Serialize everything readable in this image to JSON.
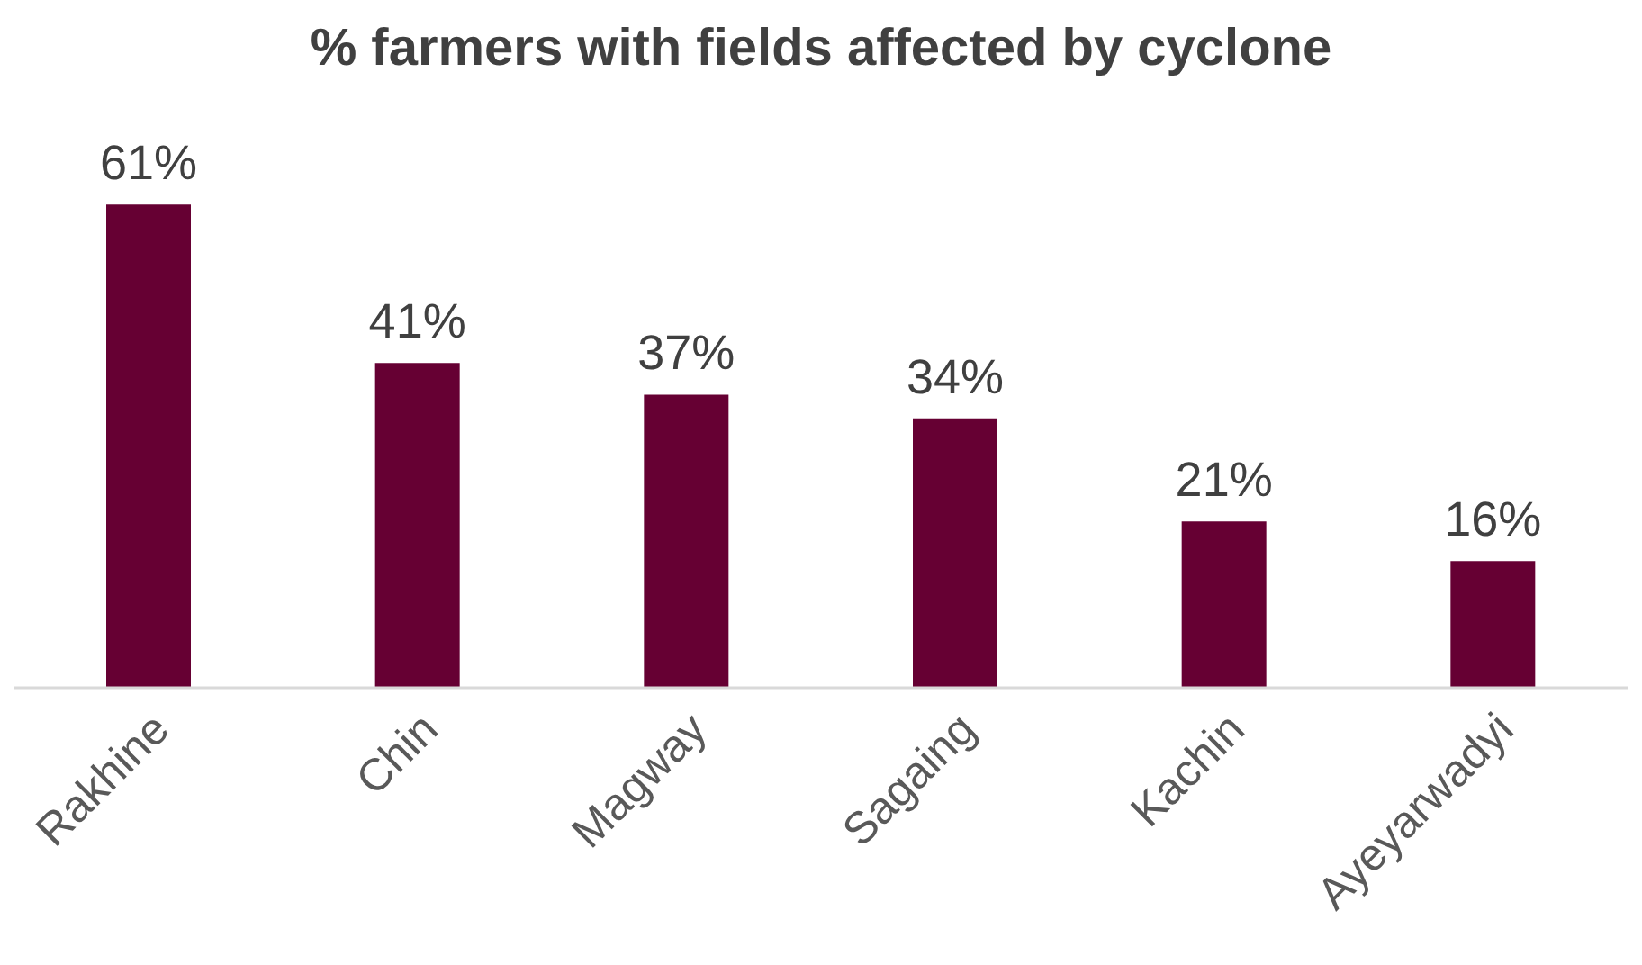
{
  "chart_data": {
    "type": "bar",
    "title": "% farmers with fields affected by cyclone",
    "categories": [
      "Rakhine",
      "Chin",
      "Magway",
      "Sagaing",
      "Kachin",
      "Ayeyarwadyi"
    ],
    "values": [
      61,
      41,
      37,
      34,
      21,
      16
    ],
    "value_labels": [
      "61%",
      "41%",
      "37%",
      "34%",
      "21%",
      "16%"
    ],
    "color": "#660033"
  }
}
